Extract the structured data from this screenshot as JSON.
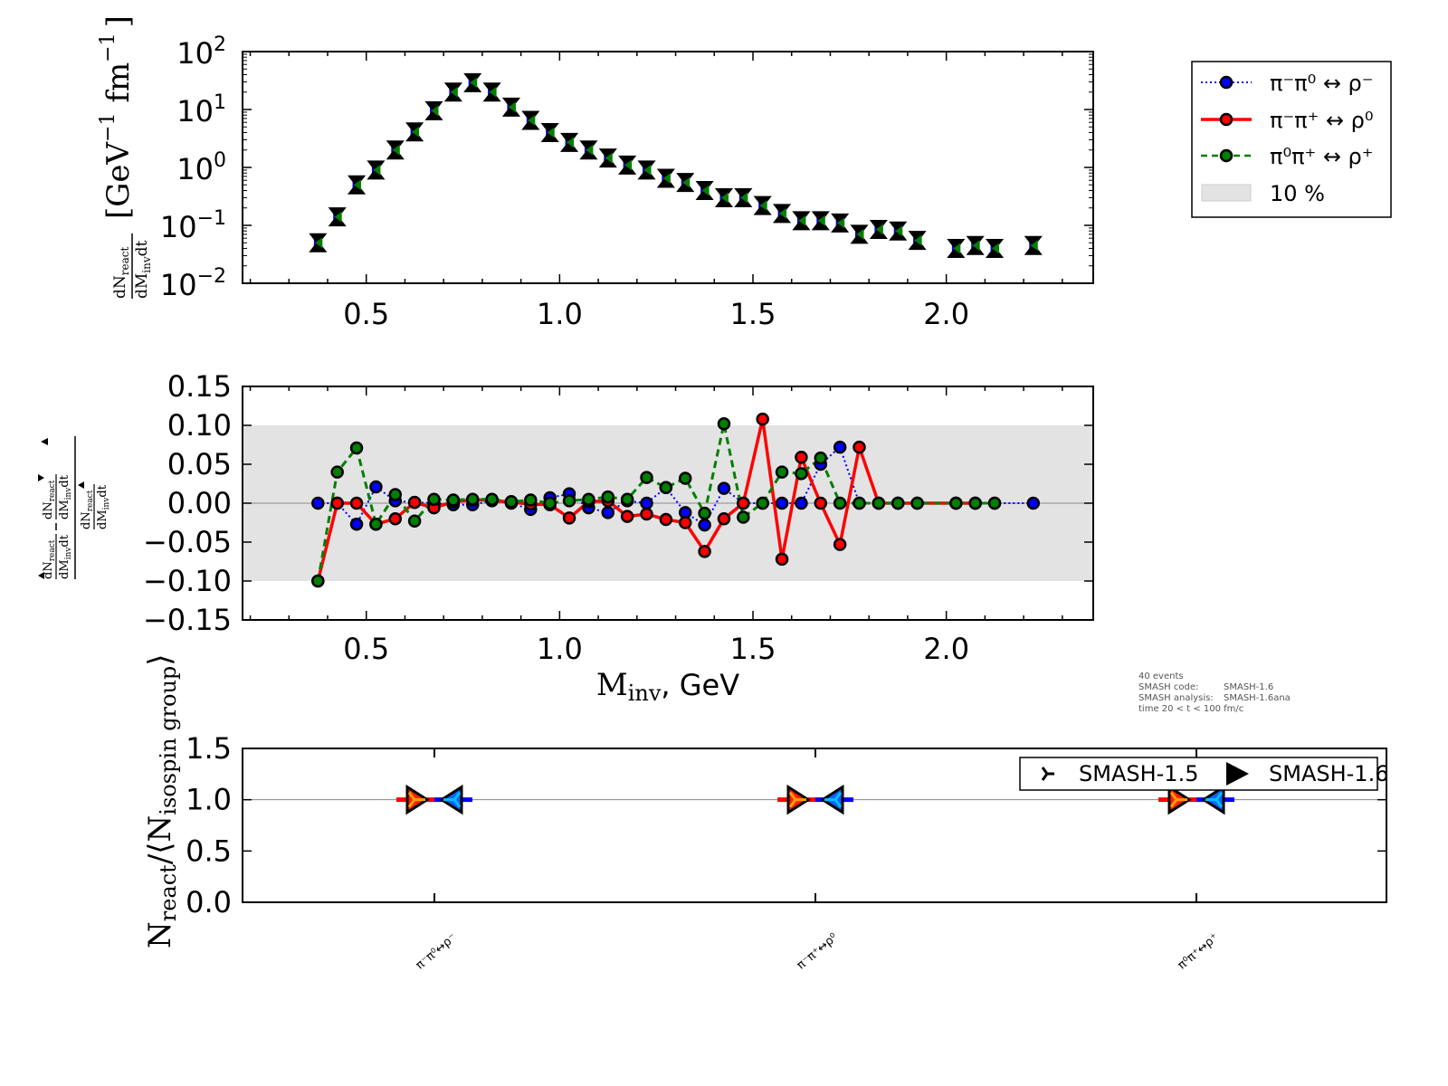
{
  "chart_data": [
    {
      "type": "scatter",
      "title": "",
      "xlabel": "",
      "ylabel": "dN_react/dM_inv dt [GeV^-1 fm^-1]",
      "yscale": "log",
      "xlim": [
        0.18,
        2.38
      ],
      "ylim": [
        0.01,
        100
      ],
      "xticks": [
        "0.5",
        "1.0",
        "1.5",
        "2.0"
      ],
      "yticks": [
        {
          "base": "10",
          "exp": "2"
        },
        {
          "base": "10",
          "exp": "1"
        },
        {
          "base": "10",
          "exp": "0"
        },
        {
          "base": "10",
          "exp": "−1"
        },
        {
          "base": "10",
          "exp": "−2"
        }
      ],
      "x": [
        0.375,
        0.425,
        0.475,
        0.525,
        0.575,
        0.625,
        0.675,
        0.725,
        0.775,
        0.825,
        0.875,
        0.925,
        0.975,
        1.025,
        1.075,
        1.125,
        1.175,
        1.225,
        1.275,
        1.325,
        1.375,
        1.425,
        1.475,
        1.525,
        1.575,
        1.625,
        1.675,
        1.725,
        1.775,
        1.825,
        1.875,
        1.925,
        2.025,
        2.075,
        2.125,
        2.225
      ],
      "values": [
        0.05,
        0.14,
        0.5,
        0.9,
        2.0,
        4.1,
        9.5,
        20,
        29,
        20,
        11,
        6.5,
        4.0,
        2.7,
        2.0,
        1.45,
        1.1,
        0.9,
        0.65,
        0.55,
        0.4,
        0.3,
        0.3,
        0.22,
        0.16,
        0.12,
        0.12,
        0.11,
        0.07,
        0.085,
        0.08,
        0.055,
        0.04,
        0.045,
        0.04,
        0.045
      ],
      "series": [
        {
          "name": "π⁻π⁰ ↔ ρ⁻",
          "color": "#0000ff",
          "linestyle": "dotted"
        },
        {
          "name": "π⁻π⁺ ↔ ρ⁰",
          "color": "#ff0000",
          "linestyle": "solid"
        },
        {
          "name": "π⁰π⁺ ↔ ρ⁺",
          "color": "#007f00",
          "linestyle": "dashed"
        }
      ]
    },
    {
      "type": "line",
      "title": "",
      "xlabel_main": "M",
      "xlabel_sub": "inv",
      "xlabel_rest": ", GeV",
      "ylabel": "relative deviation of dN_react/dM_inv dt",
      "xlim": [
        0.18,
        2.38
      ],
      "ylim": [
        -0.15,
        0.15
      ],
      "band": {
        "label": "10 %",
        "range": [
          -0.1,
          0.1
        ],
        "color": "#e3e3e3"
      },
      "xticks": [
        "0.5",
        "1.0",
        "1.5",
        "2.0"
      ],
      "yticks": [
        "0.15",
        "0.10",
        "0.05",
        "0.00",
        "−0.05",
        "−0.10",
        "−0.15"
      ],
      "ytick_values": [
        0.15,
        0.1,
        0.05,
        0.0,
        -0.05,
        -0.1,
        -0.15
      ],
      "xtick_values": [
        0.5,
        1.0,
        1.5,
        2.0
      ],
      "series": [
        {
          "name": "π⁻π⁰ ↔ ρ⁻",
          "color": "#0000ff",
          "linestyle": "dotted",
          "x": [
            0.375,
            0.425,
            0.475,
            0.525,
            0.575,
            0.625,
            0.675,
            0.725,
            0.775,
            0.825,
            0.875,
            0.925,
            0.975,
            1.025,
            1.075,
            1.125,
            1.175,
            1.225,
            1.275,
            1.325,
            1.375,
            1.425,
            1.475,
            1.525,
            1.575,
            1.625,
            1.675,
            1.725,
            1.775,
            1.825,
            1.875,
            1.925,
            2.025,
            2.075,
            2.125,
            2.225
          ],
          "y": [
            0.0,
            0.0,
            -0.027,
            0.021,
            0.003,
            0.001,
            0.0,
            -0.002,
            -0.002,
            0.003,
            0.0,
            -0.008,
            0.007,
            0.012,
            -0.006,
            -0.012,
            0.003,
            0.0,
            0.02,
            -0.012,
            -0.028,
            0.019,
            0.0,
            0.0,
            0.0,
            0.0,
            0.05,
            0.072,
            0.0,
            0.0,
            0.0,
            0.0,
            0.0,
            0.0,
            0.0,
            0.0
          ]
        },
        {
          "name": "π⁻π⁺ ↔ ρ⁰",
          "color": "#ff0000",
          "linestyle": "solid",
          "x": [
            0.375,
            0.425,
            0.475,
            0.525,
            0.575,
            0.625,
            0.675,
            0.725,
            0.775,
            0.825,
            0.875,
            0.925,
            0.975,
            1.025,
            1.075,
            1.125,
            1.175,
            1.225,
            1.275,
            1.325,
            1.375,
            1.425,
            1.475,
            1.525,
            1.575,
            1.625,
            1.675,
            1.725,
            1.775,
            1.825,
            1.875,
            1.925,
            2.025,
            2.075
          ],
          "y": [
            -0.1,
            0.0,
            0.0,
            -0.027,
            -0.02,
            0.001,
            -0.006,
            0.002,
            0.004,
            0.004,
            0.001,
            -0.001,
            -0.002,
            -0.019,
            0.002,
            0.003,
            -0.017,
            -0.014,
            -0.021,
            -0.025,
            -0.062,
            -0.02,
            0.0,
            0.108,
            -0.072,
            0.059,
            0.0,
            -0.053,
            0.072,
            0.0,
            0.0,
            0.0,
            0.0,
            0.0
          ]
        },
        {
          "name": "π⁰π⁺ ↔ ρ⁺",
          "color": "#007f00",
          "linestyle": "dashed",
          "x": [
            0.375,
            0.425,
            0.475,
            0.525,
            0.575,
            0.625,
            0.675,
            0.725,
            0.775,
            0.825,
            0.875,
            0.925,
            0.975,
            1.025,
            1.075,
            1.125,
            1.175,
            1.225,
            1.275,
            1.325,
            1.375,
            1.425,
            1.475,
            1.525,
            1.575,
            1.625,
            1.675,
            1.725,
            1.775,
            1.825,
            1.875,
            1.925,
            2.025,
            2.075,
            2.125
          ],
          "y": [
            -0.1,
            0.04,
            0.071,
            -0.027,
            0.011,
            -0.023,
            0.005,
            0.004,
            0.005,
            0.005,
            0.002,
            0.004,
            0.0,
            0.003,
            0.005,
            0.008,
            0.005,
            0.033,
            0.02,
            0.032,
            -0.013,
            0.102,
            -0.018,
            0.0,
            0.04,
            0.038,
            0.058,
            0.0,
            0.0,
            0.0,
            0.0,
            0.0,
            0.0,
            0.0,
            0.0
          ]
        }
      ]
    },
    {
      "type": "scatter",
      "title": "",
      "ylabel_main": "N",
      "ylabel_sub1": "react",
      "ylabel_mid": "/⟨N",
      "ylabel_sub2": "isospin group",
      "ylabel_end": "⟩",
      "ylim": [
        0.0,
        1.5
      ],
      "yticks": [
        "1.5",
        "1.0",
        "0.5",
        "0.0"
      ],
      "ytick_values": [
        1.5,
        1.0,
        0.5,
        0.0
      ],
      "categories": [
        "π⁻π⁰↔ρ⁻",
        "π⁻π⁺↔ρ⁰",
        "π⁰π⁺↔ρ⁺"
      ],
      "series": [
        {
          "name": "SMASH-1.5",
          "marker": "tri_right",
          "values": [
            1.0,
            1.0,
            1.0
          ]
        },
        {
          "name": "SMASH-1.6",
          "marker": "triangle_right",
          "values": [
            1.0,
            1.0,
            1.0
          ]
        }
      ]
    }
  ],
  "legend_main": {
    "entries": [
      {
        "label": "π⁻π⁰ ↔ ρ⁻",
        "color": "#0000ff",
        "style": "dotted"
      },
      {
        "label": "π⁻π⁺ ↔ ρ⁰",
        "color": "#ff0000",
        "style": "solid"
      },
      {
        "label": "π⁰π⁺ ↔ ρ⁺",
        "color": "#007f00",
        "style": "dashed"
      },
      {
        "label": "10 %",
        "color": "#e3e3e3",
        "style": "patch"
      }
    ]
  },
  "legend_versions": {
    "entries": [
      {
        "label": "SMASH-1.5",
        "marker": "tri_right"
      },
      {
        "label": "SMASH-1.6",
        "marker": "triangle_right"
      }
    ]
  },
  "info": {
    "line1": "40 events",
    "line2_label": "SMASH code:",
    "line2_value": "SMASH-1.6",
    "line3_label": "SMASH analysis:",
    "line3_value": "SMASH-1.6ana",
    "line4": "time 20 < t < 100 fm/c"
  },
  "labels": {
    "top_ylabel_num": "dN",
    "top_ylabel_num_sub": "react",
    "top_ylabel_den": "dM",
    "top_ylabel_den_sub": "inv",
    "top_ylabel_den_end": "dt",
    "top_ylabel_units": "[GeV",
    "top_ylabel_units_exp": "−1",
    "top_ylabel_units2": " fm",
    "top_ylabel_units2_exp": "−1",
    "top_ylabel_units_close": "]"
  },
  "colors": {
    "blue": "#0000ff",
    "red": "#ff0000",
    "green": "#007f00",
    "band": "#e3e3e3",
    "axis": "#000000"
  }
}
